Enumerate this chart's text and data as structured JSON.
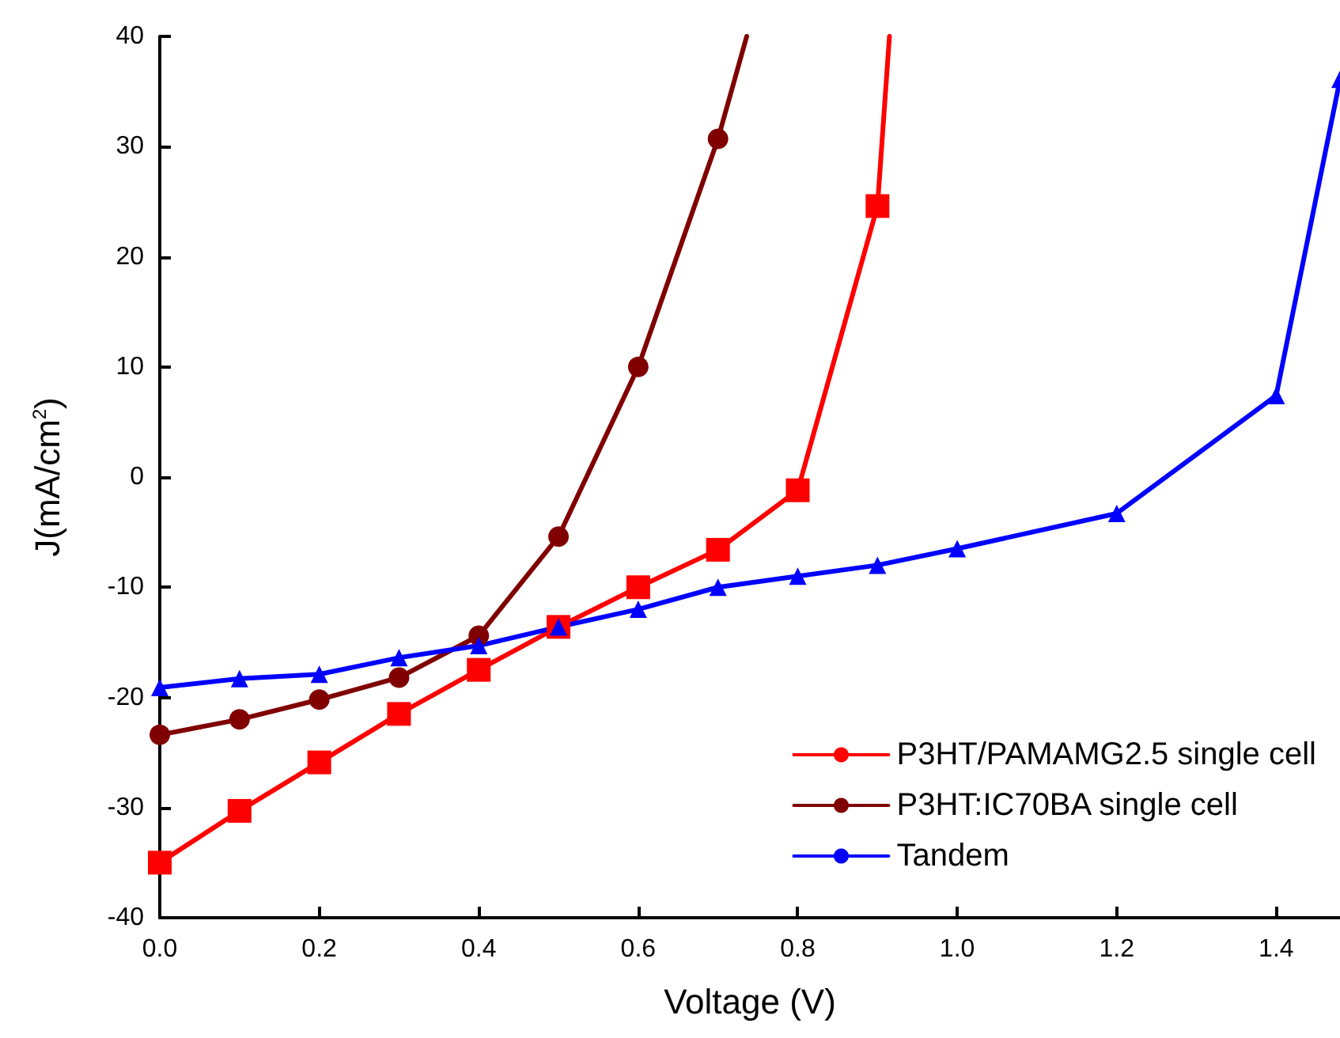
{
  "chart_data": {
    "type": "line",
    "xlabel": "Voltage (V)",
    "ylabel": "J(mA/cm$^{2}$)",
    "xlim": [
      0,
      1.48
    ],
    "xticks": [
      {
        "value": 0,
        "label": "0.0"
      },
      0.2,
      0.4,
      0.6,
      0.8,
      {
        "value": 1,
        "label": "1.0"
      },
      1.2,
      1.4
    ],
    "ylim": [
      -40,
      40
    ],
    "yticks": [
      -40,
      -30,
      -20,
      -10,
      0,
      10,
      20,
      30,
      40
    ],
    "grid": false,
    "legend": "bottom right",
    "line_style": "solid",
    "series": [
      {
        "name": "P3HT/PAMAMG2.5 single cell",
        "color": "#ff0000",
        "marker": "square",
        "x": [
          0,
          0.1,
          0.2,
          0.3,
          0.4,
          0.5,
          0.6,
          0.7,
          0.8,
          0.9,
          0.915
        ],
        "values": [
          -35,
          -30.3,
          -25.9,
          -21.5,
          -17.5,
          -13.6,
          -10,
          -6.6,
          -1.2,
          24.6,
          40
        ]
      },
      {
        "name": "P3HT:IC70BA single cell",
        "color": "#800000",
        "marker": "circle",
        "x": [
          0,
          0.1,
          0.2,
          0.3,
          0.4,
          0.5,
          0.6,
          0.7,
          0.736
        ],
        "values": [
          -23.4,
          -22,
          -20.2,
          -18.2,
          -14.4,
          -5.4,
          10,
          30.7,
          40
        ]
      },
      {
        "name": "Tandem",
        "color": "#0000ff",
        "marker": "triangle",
        "x": [
          0,
          0.1,
          0.2,
          0.3,
          0.4,
          0.5,
          0.6,
          0.7,
          0.8,
          0.9,
          1.0,
          1.2,
          1.4,
          1.48
        ],
        "values": [
          -19.1,
          -18.3,
          -17.9,
          -16.4,
          -15.3,
          -13.6,
          -12,
          -10,
          -9,
          -8,
          -6.5,
          -3.3,
          7.4,
          36.1
        ]
      }
    ]
  }
}
